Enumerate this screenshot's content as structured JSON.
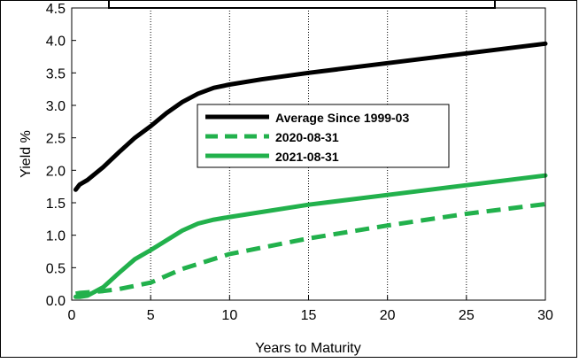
{
  "chart_data": {
    "type": "line",
    "title": "",
    "xlabel": "Years to Maturity",
    "ylabel": "Yield %",
    "xlim": [
      0,
      30
    ],
    "ylim": [
      0.0,
      4.5
    ],
    "x_ticks": [
      0,
      5,
      10,
      15,
      20,
      25,
      30
    ],
    "y_ticks": [
      0.0,
      0.5,
      1.0,
      1.5,
      2.0,
      2.5,
      3.0,
      3.5,
      4.0,
      4.5
    ],
    "y_tick_labels": [
      "0.0",
      "0.5",
      "1.0",
      "1.5",
      "2.0",
      "2.5",
      "3.0",
      "3.5",
      "4.0",
      "4.5"
    ],
    "grid": "vertical dotted",
    "legend_placement": "center",
    "series": [
      {
        "name": "Average Since 1999-03",
        "color": "#000000",
        "style": "solid",
        "x": [
          0.25,
          0.5,
          1,
          2,
          3,
          4,
          5,
          6,
          7,
          8,
          9,
          10,
          12,
          15,
          20,
          25,
          30
        ],
        "y": [
          1.7,
          1.78,
          1.85,
          2.05,
          2.28,
          2.5,
          2.68,
          2.88,
          3.05,
          3.18,
          3.27,
          3.32,
          3.4,
          3.5,
          3.65,
          3.8,
          3.95
        ]
      },
      {
        "name": "2020-08-31",
        "color": "#22b14c",
        "style": "dashed",
        "x": [
          0.25,
          0.5,
          1,
          2,
          3,
          5,
          7,
          10,
          15,
          20,
          25,
          30
        ],
        "y": [
          0.1,
          0.11,
          0.12,
          0.14,
          0.17,
          0.27,
          0.48,
          0.71,
          0.95,
          1.15,
          1.33,
          1.48
        ]
      },
      {
        "name": "2021-08-31",
        "color": "#22b14c",
        "style": "solid",
        "x": [
          0.25,
          0.5,
          1,
          2,
          3,
          4,
          5,
          6,
          7,
          8,
          9,
          10,
          15,
          20,
          25,
          30
        ],
        "y": [
          0.05,
          0.05,
          0.07,
          0.2,
          0.42,
          0.63,
          0.77,
          0.92,
          1.07,
          1.18,
          1.24,
          1.28,
          1.47,
          1.62,
          1.77,
          1.92
        ]
      }
    ]
  }
}
